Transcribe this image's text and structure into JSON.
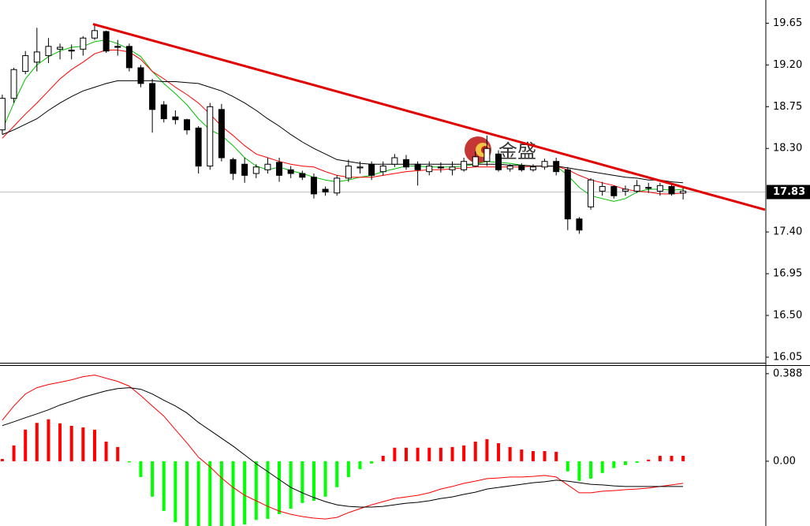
{
  "chart_data": [
    {
      "type": "candlestick",
      "watermark": "金盛",
      "open": [
        18.5,
        18.84,
        19.13,
        19.23,
        19.3,
        19.37,
        19.36,
        19.37,
        19.49,
        19.56,
        19.4,
        19.4,
        19.17,
        19.0,
        18.77,
        18.64,
        18.61,
        18.52,
        18.11,
        18.72,
        18.18,
        18.13,
        18.03,
        18.07,
        18.15,
        18.07,
        18.03,
        17.99,
        17.86,
        17.82,
        17.98,
        18.09,
        18.13,
        18.05,
        18.13,
        18.18,
        18.13,
        18.05,
        18.1,
        18.07,
        18.07,
        18.11,
        18.16,
        18.24,
        18.08,
        18.11,
        18.07,
        18.1,
        18.16,
        18.07,
        17.54,
        17.67,
        17.84,
        17.89,
        17.84,
        17.84,
        17.88,
        17.84,
        17.89,
        17.82
      ],
      "high": [
        18.88,
        19.17,
        19.35,
        19.6,
        19.49,
        19.43,
        19.42,
        19.51,
        19.64,
        19.57,
        19.47,
        19.43,
        19.2,
        19.05,
        18.81,
        18.71,
        18.62,
        18.54,
        18.79,
        18.78,
        18.2,
        18.2,
        18.13,
        18.2,
        18.2,
        18.11,
        18.06,
        18.03,
        17.89,
        18.01,
        18.18,
        18.16,
        18.16,
        18.16,
        18.24,
        18.23,
        18.16,
        18.16,
        18.15,
        18.16,
        18.2,
        18.27,
        18.44,
        18.28,
        18.13,
        18.14,
        18.13,
        18.19,
        18.2,
        18.1,
        17.56,
        17.98,
        17.94,
        17.9,
        17.9,
        17.96,
        17.93,
        17.93,
        17.93,
        17.89
      ],
      "low": [
        18.45,
        18.79,
        19.1,
        19.13,
        19.22,
        19.26,
        19.26,
        19.3,
        19.47,
        19.33,
        19.3,
        19.13,
        18.96,
        18.47,
        18.58,
        18.56,
        18.45,
        18.03,
        18.07,
        18.16,
        17.96,
        17.93,
        17.98,
        18.03,
        17.94,
        17.98,
        17.96,
        17.76,
        17.79,
        17.79,
        17.94,
        18.03,
        17.96,
        18.01,
        18.1,
        18.07,
        17.9,
        18.01,
        18.04,
        18.01,
        18.05,
        18.1,
        18.11,
        18.05,
        18.05,
        18.05,
        18.05,
        18.07,
        18.01,
        17.42,
        17.38,
        17.64,
        17.79,
        17.76,
        17.79,
        17.82,
        17.82,
        17.79,
        17.79,
        17.75
      ],
      "close": [
        18.84,
        19.15,
        19.3,
        19.34,
        19.4,
        19.39,
        19.35,
        19.49,
        19.57,
        19.35,
        19.39,
        19.17,
        19.0,
        18.72,
        18.62,
        18.61,
        18.5,
        18.11,
        18.75,
        18.2,
        18.03,
        18.01,
        18.1,
        18.13,
        18.01,
        18.03,
        17.99,
        17.81,
        17.83,
        17.98,
        18.11,
        18.1,
        18.01,
        18.11,
        18.2,
        18.1,
        18.07,
        18.11,
        18.09,
        18.1,
        18.16,
        18.21,
        18.3,
        18.07,
        18.11,
        18.07,
        18.1,
        18.16,
        18.05,
        17.54,
        17.42,
        17.96,
        17.89,
        17.79,
        17.86,
        17.9,
        17.87,
        17.9,
        17.81,
        17.84
      ],
      "up_color": "#ffffff",
      "down_color": "#000000",
      "series": [
        {
          "color": "#00c000",
          "values": [
            18.5,
            18.79,
            19.05,
            19.2,
            19.29,
            19.35,
            19.39,
            19.4,
            19.45,
            19.47,
            19.43,
            19.37,
            19.29,
            19.13,
            19.0,
            18.89,
            18.77,
            18.62,
            18.5,
            18.44,
            18.33,
            18.2,
            18.11,
            18.07,
            18.1,
            18.06,
            18.03,
            17.99,
            17.96,
            17.94,
            17.96,
            17.99,
            18.01,
            18.05,
            18.08,
            18.11,
            18.11,
            18.1,
            18.1,
            18.1,
            18.11,
            18.13,
            18.16,
            18.15,
            18.14,
            18.12,
            18.11,
            18.11,
            18.11,
            18.01,
            17.88,
            17.79,
            17.76,
            17.73,
            17.76,
            17.83,
            17.86,
            17.86,
            17.85,
            17.86
          ]
        },
        {
          "color": "#ff0000",
          "values": [
            18.41,
            18.54,
            18.67,
            18.79,
            18.92,
            19.05,
            19.15,
            19.23,
            19.32,
            19.36,
            19.36,
            19.34,
            19.26,
            19.13,
            19.05,
            18.96,
            18.88,
            18.79,
            18.67,
            18.54,
            18.44,
            18.33,
            18.24,
            18.2,
            18.16,
            18.13,
            18.11,
            18.1,
            18.05,
            18.01,
            17.99,
            17.99,
            17.99,
            18.01,
            18.03,
            18.05,
            18.06,
            18.07,
            18.07,
            18.08,
            18.09,
            18.1,
            18.1,
            18.1,
            18.1,
            18.1,
            18.11,
            18.11,
            18.11,
            18.07,
            18.01,
            17.96,
            17.93,
            17.9,
            17.86,
            17.84,
            17.83,
            17.81,
            17.81,
            17.82
          ]
        },
        {
          "color": "#000000",
          "values": [
            18.45,
            18.5,
            18.56,
            18.62,
            18.71,
            18.79,
            18.86,
            18.92,
            18.96,
            19.0,
            19.03,
            19.03,
            19.03,
            19.03,
            19.02,
            19.02,
            19.01,
            19.0,
            18.96,
            18.92,
            18.86,
            18.79,
            18.71,
            18.62,
            18.54,
            18.45,
            18.37,
            18.3,
            18.24,
            18.18,
            18.16,
            18.14,
            18.13,
            18.13,
            18.13,
            18.13,
            18.13,
            18.13,
            18.13,
            18.13,
            18.13,
            18.13,
            18.13,
            18.13,
            18.12,
            18.12,
            18.11,
            18.11,
            18.11,
            18.09,
            18.07,
            18.05,
            18.03,
            18.01,
            17.99,
            17.98,
            17.96,
            17.96,
            17.94,
            17.93
          ]
        }
      ],
      "trendline": {
        "color": "#e00000",
        "x": [
          7.86,
          66.1
        ],
        "values": [
          19.64,
          17.64
        ]
      },
      "last_price": 17.83,
      "last_price_color": "#c0c0c0",
      "xlim": [
        -0.2,
        66.1
      ],
      "ylim": [
        15.99,
        19.9
      ],
      "yticks": [
        19.65,
        {
          "value": 19.2,
          "label": "19.20"
        },
        18.75,
        {
          "value": 18.3,
          "label": "18.30"
        },
        {
          "value": 17.4,
          "label": "17.40"
        },
        16.95,
        {
          "value": 16.5,
          "label": "16.50"
        },
        16.05
      ],
      "grid": false
    },
    {
      "type": "macd",
      "values": [
        0.01,
        0.07,
        0.14,
        0.17,
        0.186,
        0.168,
        0.157,
        0.15,
        0.14,
        0.087,
        0.063,
        -0.005,
        -0.07,
        -0.157,
        -0.22,
        -0.27,
        -0.3,
        -0.31,
        -0.31,
        -0.3,
        -0.29,
        -0.28,
        -0.26,
        -0.255,
        -0.234,
        -0.21,
        -0.185,
        -0.175,
        -0.157,
        -0.115,
        -0.07,
        -0.035,
        -0.01,
        0.024,
        0.06,
        0.06,
        0.06,
        0.06,
        0.06,
        0.063,
        0.07,
        0.087,
        0.098,
        0.08,
        0.063,
        0.052,
        0.045,
        0.045,
        0.042,
        -0.045,
        -0.087,
        -0.077,
        -0.052,
        -0.03,
        -0.017,
        -0.007,
        0.007,
        0.024,
        0.024,
        0.024
      ],
      "up_color": "#ff0000",
      "down_color": "#00ff00",
      "series": [
        {
          "color": "#ff0000",
          "values": [
            0.182,
            0.245,
            0.298,
            0.326,
            0.34,
            0.35,
            0.361,
            0.375,
            0.382,
            0.368,
            0.354,
            0.333,
            0.291,
            0.245,
            0.2,
            0.14,
            0.081,
            0.018,
            -0.025,
            -0.074,
            -0.116,
            -0.151,
            -0.175,
            -0.2,
            -0.221,
            -0.235,
            -0.245,
            -0.252,
            -0.256,
            -0.249,
            -0.228,
            -0.21,
            -0.193,
            -0.179,
            -0.165,
            -0.158,
            -0.151,
            -0.14,
            -0.123,
            -0.112,
            -0.098,
            -0.088,
            -0.077,
            -0.074,
            -0.07,
            -0.07,
            -0.067,
            -0.063,
            -0.07,
            -0.105,
            -0.14,
            -0.14,
            -0.133,
            -0.13,
            -0.126,
            -0.123,
            -0.119,
            -0.112,
            -0.105,
            -0.098
          ]
        },
        {
          "color": "#000000",
          "values": [
            0.158,
            0.175,
            0.193,
            0.21,
            0.228,
            0.249,
            0.266,
            0.284,
            0.298,
            0.312,
            0.322,
            0.326,
            0.319,
            0.298,
            0.27,
            0.245,
            0.214,
            0.172,
            0.137,
            0.102,
            0.067,
            0.028,
            -0.011,
            -0.046,
            -0.081,
            -0.116,
            -0.14,
            -0.161,
            -0.179,
            -0.193,
            -0.2,
            -0.203,
            -0.203,
            -0.2,
            -0.193,
            -0.186,
            -0.182,
            -0.175,
            -0.165,
            -0.158,
            -0.147,
            -0.137,
            -0.123,
            -0.116,
            -0.109,
            -0.102,
            -0.095,
            -0.091,
            -0.084,
            -0.088,
            -0.095,
            -0.102,
            -0.105,
            -0.109,
            -0.112,
            -0.112,
            -0.112,
            -0.112,
            -0.112,
            -0.112
          ]
        }
      ],
      "xlim": [
        -0.2,
        66.1
      ],
      "ylim": [
        -0.287,
        0.426
      ],
      "yticks": [
        0.388,
        {
          "value": 0,
          "label": "0.00"
        }
      ],
      "grid": false
    }
  ]
}
